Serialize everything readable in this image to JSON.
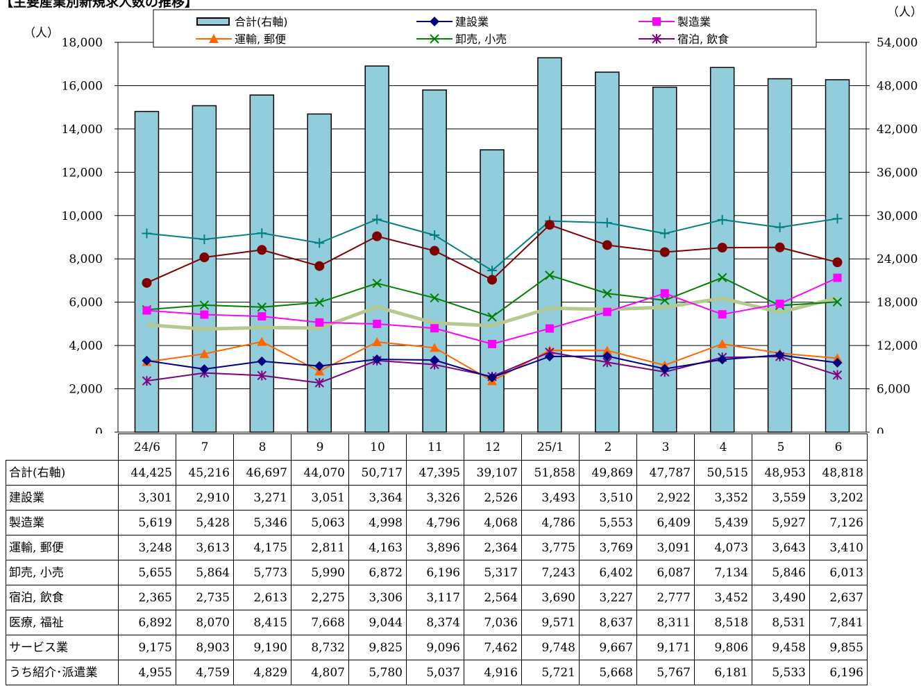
{
  "title": "【主要産業別新規求人数の推移】",
  "unit_left": "（人）",
  "unit_right": "（人）",
  "colors": {
    "total_bar": "#92CDDC",
    "construction": "#000080",
    "manufacturing": "#FF00FF",
    "transport": "#FF6600",
    "wholesale": "#008000",
    "lodging": "#800080",
    "medical": "#800000",
    "service": "#008080",
    "dispatch": "#B5C98F"
  },
  "chart_data": {
    "type": "bar",
    "categories": [
      "24/6",
      "7",
      "8",
      "9",
      "10",
      "11",
      "12",
      "25/1",
      "2",
      "3",
      "4",
      "5",
      "6"
    ],
    "y_left": {
      "range": [
        0,
        18000
      ],
      "ticks": [
        "0",
        "2,000",
        "4,000",
        "6,000",
        "8,000",
        "10,000",
        "12,000",
        "14,000",
        "16,000",
        "18,000"
      ]
    },
    "y_right": {
      "range": [
        0,
        54000
      ],
      "ticks": [
        "0",
        "6,000",
        "12,000",
        "18,000",
        "24,000",
        "30,000",
        "36,000",
        "42,000",
        "48,000",
        "54,000"
      ]
    },
    "legend": [
      "合計(右軸)",
      "建設業",
      "製造業",
      "運輸, 郵便",
      "卸売, 小売",
      "宿泊, 飲食"
    ],
    "series": [
      {
        "key": "total",
        "name": "合計(右軸)",
        "type": "bar",
        "axis": "right",
        "marker": "",
        "values": [
          44425,
          45216,
          46697,
          44070,
          50717,
          47395,
          39107,
          51858,
          49869,
          47787,
          50515,
          48953,
          48818
        ]
      },
      {
        "key": "construction",
        "name": "建設業",
        "type": "line",
        "axis": "left",
        "marker": "diamond",
        "values": [
          3301,
          2910,
          3271,
          3051,
          3364,
          3326,
          2526,
          3493,
          3510,
          2922,
          3352,
          3559,
          3202
        ]
      },
      {
        "key": "manufacturing",
        "name": "製造業",
        "type": "line",
        "axis": "left",
        "marker": "square",
        "values": [
          5619,
          5428,
          5346,
          5063,
          4998,
          4796,
          4068,
          4786,
          5553,
          6409,
          5439,
          5927,
          7126
        ]
      },
      {
        "key": "transport",
        "name": "運輸, 郵便",
        "type": "line",
        "axis": "left",
        "marker": "triangle",
        "values": [
          3248,
          3613,
          4175,
          2811,
          4163,
          3896,
          2364,
          3775,
          3769,
          3091,
          4073,
          3643,
          3410
        ]
      },
      {
        "key": "wholesale",
        "name": "卸売, 小売",
        "type": "line",
        "axis": "left",
        "marker": "x",
        "values": [
          5655,
          5864,
          5773,
          5990,
          6872,
          6196,
          5317,
          7243,
          6402,
          6087,
          7134,
          5846,
          6013
        ]
      },
      {
        "key": "lodging",
        "name": "宿泊, 飲食",
        "type": "line",
        "axis": "left",
        "marker": "star",
        "values": [
          2365,
          2735,
          2613,
          2275,
          3306,
          3117,
          2564,
          3690,
          3227,
          2777,
          3452,
          3490,
          2637
        ]
      },
      {
        "key": "medical",
        "name": "医療, 福祉",
        "type": "line",
        "axis": "left",
        "marker": "circle",
        "values": [
          6892,
          8070,
          8415,
          7668,
          9044,
          8374,
          7036,
          9571,
          8637,
          8311,
          8518,
          8531,
          7841
        ]
      },
      {
        "key": "service",
        "name": "サービス業",
        "type": "line",
        "axis": "left",
        "marker": "plus",
        "values": [
          9175,
          8903,
          9190,
          8732,
          9825,
          9096,
          7462,
          9748,
          9667,
          9171,
          9806,
          9458,
          9855
        ]
      },
      {
        "key": "dispatch",
        "name": "うち紹介･派遣業",
        "type": "line",
        "axis": "left",
        "marker": "",
        "values": [
          4955,
          4759,
          4829,
          4807,
          5780,
          5037,
          4916,
          5721,
          5668,
          5767,
          6181,
          5533,
          6196
        ]
      }
    ]
  },
  "table": {
    "rows": [
      {
        "label": "合計(右軸)",
        "values": [
          "44,425",
          "45,216",
          "46,697",
          "44,070",
          "50,717",
          "47,395",
          "39,107",
          "51,858",
          "49,869",
          "47,787",
          "50,515",
          "48,953",
          "48,818"
        ]
      },
      {
        "label": "建設業",
        "values": [
          "3,301",
          "2,910",
          "3,271",
          "3,051",
          "3,364",
          "3,326",
          "2,526",
          "3,493",
          "3,510",
          "2,922",
          "3,352",
          "3,559",
          "3,202"
        ]
      },
      {
        "label": "製造業",
        "values": [
          "5,619",
          "5,428",
          "5,346",
          "5,063",
          "4,998",
          "4,796",
          "4,068",
          "4,786",
          "5,553",
          "6,409",
          "5,439",
          "5,927",
          "7,126"
        ]
      },
      {
        "label": "運輸, 郵便",
        "values": [
          "3,248",
          "3,613",
          "4,175",
          "2,811",
          "4,163",
          "3,896",
          "2,364",
          "3,775",
          "3,769",
          "3,091",
          "4,073",
          "3,643",
          "3,410"
        ]
      },
      {
        "label": "卸売, 小売",
        "values": [
          "5,655",
          "5,864",
          "5,773",
          "5,990",
          "6,872",
          "6,196",
          "5,317",
          "7,243",
          "6,402",
          "6,087",
          "7,134",
          "5,846",
          "6,013"
        ]
      },
      {
        "label": "宿泊, 飲食",
        "values": [
          "2,365",
          "2,735",
          "2,613",
          "2,275",
          "3,306",
          "3,117",
          "2,564",
          "3,690",
          "3,227",
          "2,777",
          "3,452",
          "3,490",
          "2,637"
        ]
      },
      {
        "label": "医療, 福祉",
        "values": [
          "6,892",
          "8,070",
          "8,415",
          "7,668",
          "9,044",
          "8,374",
          "7,036",
          "9,571",
          "8,637",
          "8,311",
          "8,518",
          "8,531",
          "7,841"
        ]
      },
      {
        "label": "サービス業",
        "values": [
          "9,175",
          "8,903",
          "9,190",
          "8,732",
          "9,825",
          "9,096",
          "7,462",
          "9,748",
          "9,667",
          "9,171",
          "9,806",
          "9,458",
          "9,855"
        ]
      },
      {
        "label": "うち紹介･派遣業",
        "values": [
          "4,955",
          "4,759",
          "4,829",
          "4,807",
          "5,780",
          "5,037",
          "4,916",
          "5,721",
          "5,668",
          "5,767",
          "6,181",
          "5,533",
          "6,196"
        ]
      }
    ]
  }
}
